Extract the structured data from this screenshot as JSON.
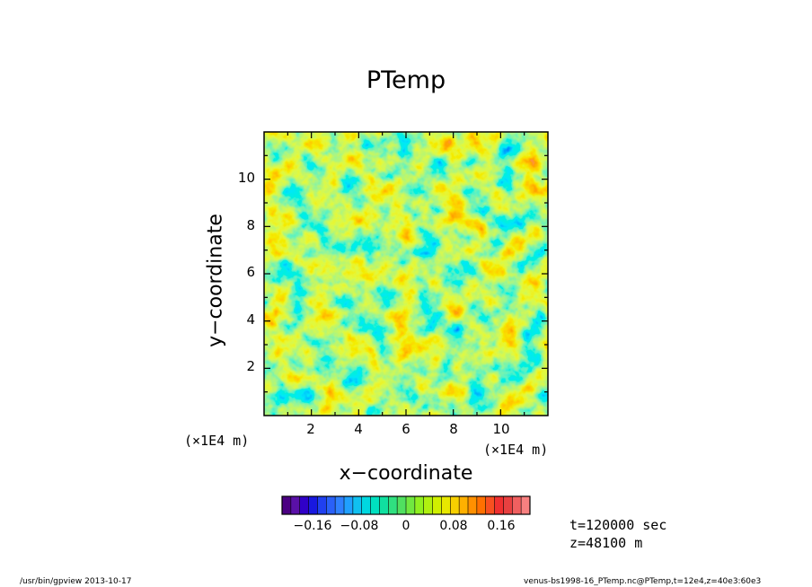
{
  "chart_data": {
    "type": "heatmap",
    "title": "PTemp",
    "xlabel": "x−coordinate",
    "ylabel": "y−coordinate",
    "x_unit": "(×1E4 m)",
    "y_unit": "(×1E4 m)",
    "xlim": [
      0,
      12
    ],
    "ylim": [
      0,
      12
    ],
    "x_ticks": [
      "2",
      "4",
      "6",
      "8",
      "10"
    ],
    "x_tick_values": [
      2,
      4,
      6,
      8,
      10
    ],
    "y_ticks": [
      "2",
      "4",
      "6",
      "8",
      "10"
    ],
    "y_tick_values": [
      2,
      4,
      6,
      8,
      10
    ],
    "colorbar": {
      "range": [
        -0.2,
        0.2
      ],
      "tick_labels": [
        "−0.16",
        "−0.08",
        "0",
        "0.08",
        "0.16"
      ],
      "tick_values": [
        -0.16,
        -0.08,
        0,
        0.08,
        0.16
      ],
      "colors": [
        "#4b0082",
        "#5a10a8",
        "#3000c8",
        "#1818e0",
        "#2040f0",
        "#2a60f8",
        "#2f80ff",
        "#20a0ff",
        "#10c0f0",
        "#00d8e0",
        "#00e0c0",
        "#10e0a0",
        "#30e080",
        "#50e060",
        "#70e840",
        "#90f020",
        "#b0f010",
        "#d0f000",
        "#e8e800",
        "#f8d000",
        "#ffb000",
        "#ff9000",
        "#ff7000",
        "#f85020",
        "#f03030",
        "#e84040",
        "#f06060",
        "#f88080"
      ]
    },
    "annotations": [
      "t=120000 sec",
      "z=48100 m"
    ]
  },
  "footer": {
    "left": "/usr/bin/gpview   2013-10-17",
    "right": "venus-bs1998-16_PTemp.nc@PTemp,t=12e4,z=40e3:60e3"
  }
}
